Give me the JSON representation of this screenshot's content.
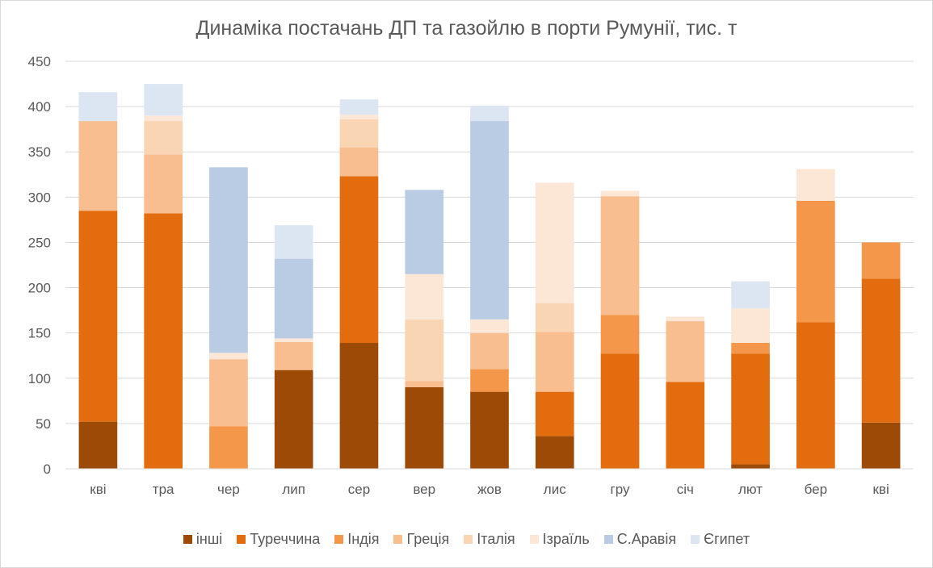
{
  "chart_data": {
    "type": "bar",
    "stacked": true,
    "title": "Динаміка постачань ДП та газойлю в порти Румунії, тис. т",
    "xlabel": "",
    "ylabel": "",
    "ylim": [
      0,
      450
    ],
    "yticks": [
      0,
      50,
      100,
      150,
      200,
      250,
      300,
      350,
      400,
      450
    ],
    "grid": true,
    "legend_position": "bottom",
    "categories": [
      "кві",
      "тра",
      "чер",
      "лип",
      "сер",
      "вер",
      "жов",
      "лис",
      "гру",
      "січ",
      "лют",
      "бер",
      "кві"
    ],
    "series": [
      {
        "name": "інші",
        "color": "#9c4a05",
        "values": [
          52,
          0,
          0,
          109,
          139,
          90,
          85,
          36,
          0,
          0,
          5,
          0,
          51
        ]
      },
      {
        "name": "Туреччина",
        "color": "#e36c0e",
        "values": [
          233,
          282,
          0,
          0,
          184,
          0,
          0,
          49,
          127,
          96,
          122,
          162,
          159
        ]
      },
      {
        "name": "Індія",
        "color": "#f5974a",
        "values": [
          0,
          0,
          47,
          0,
          0,
          0,
          25,
          0,
          43,
          0,
          12,
          134,
          40
        ]
      },
      {
        "name": "Греція",
        "color": "#f8be8f",
        "values": [
          99,
          65,
          74,
          31,
          32,
          7,
          40,
          66,
          131,
          67,
          0,
          0,
          0
        ]
      },
      {
        "name": "Італія",
        "color": "#fad5b4",
        "values": [
          0,
          37,
          0,
          0,
          31,
          68,
          0,
          32,
          0,
          0,
          0,
          0,
          0
        ]
      },
      {
        "name": "Ізраїль",
        "color": "#fce7d7",
        "values": [
          0,
          6,
          7,
          4,
          5,
          50,
          15,
          133,
          6,
          5,
          38,
          35,
          0
        ]
      },
      {
        "name": "С.Аравія",
        "color": "#b9cce4",
        "values": [
          0,
          0,
          205,
          88,
          0,
          93,
          219,
          0,
          0,
          0,
          0,
          0,
          0
        ]
      },
      {
        "name": "Єгипет",
        "color": "#dce6f2",
        "values": [
          32,
          35,
          0,
          37,
          17,
          0,
          17,
          0,
          0,
          0,
          30,
          0,
          0
        ]
      }
    ]
  }
}
